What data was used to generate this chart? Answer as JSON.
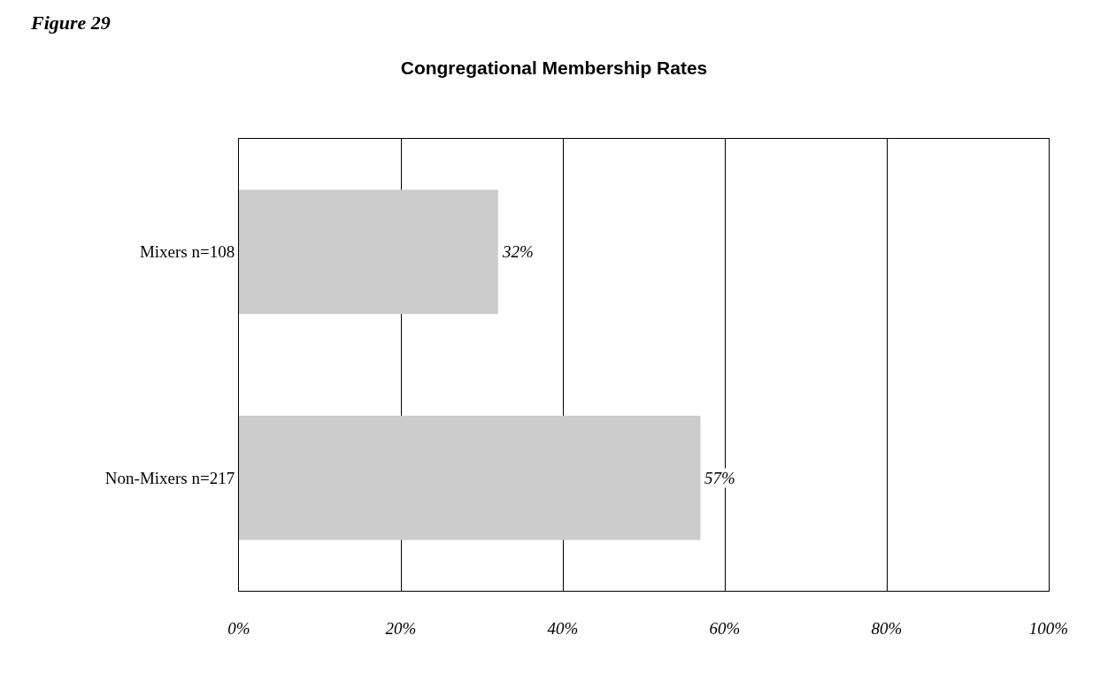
{
  "chart_data": {
    "type": "bar",
    "orientation": "horizontal",
    "title": "Congregational Membership Rates",
    "annotations": [
      "Figure 29"
    ],
    "categories": [
      "Mixers n=108",
      "Non-Mixers n=217"
    ],
    "values": [
      32,
      57
    ],
    "value_labels": [
      "32%",
      "57%"
    ],
    "color": "#cccccc",
    "xlim": [
      0,
      100
    ],
    "xticks": [
      {
        "value": 0,
        "label": "0%"
      },
      {
        "value": 20,
        "label": "20%"
      },
      {
        "value": 40,
        "label": "40%"
      },
      {
        "value": 60,
        "label": "60%"
      },
      {
        "value": 80,
        "label": "80%"
      },
      {
        "value": 100,
        "label": "100%"
      }
    ],
    "grid": "x",
    "legend": false
  }
}
